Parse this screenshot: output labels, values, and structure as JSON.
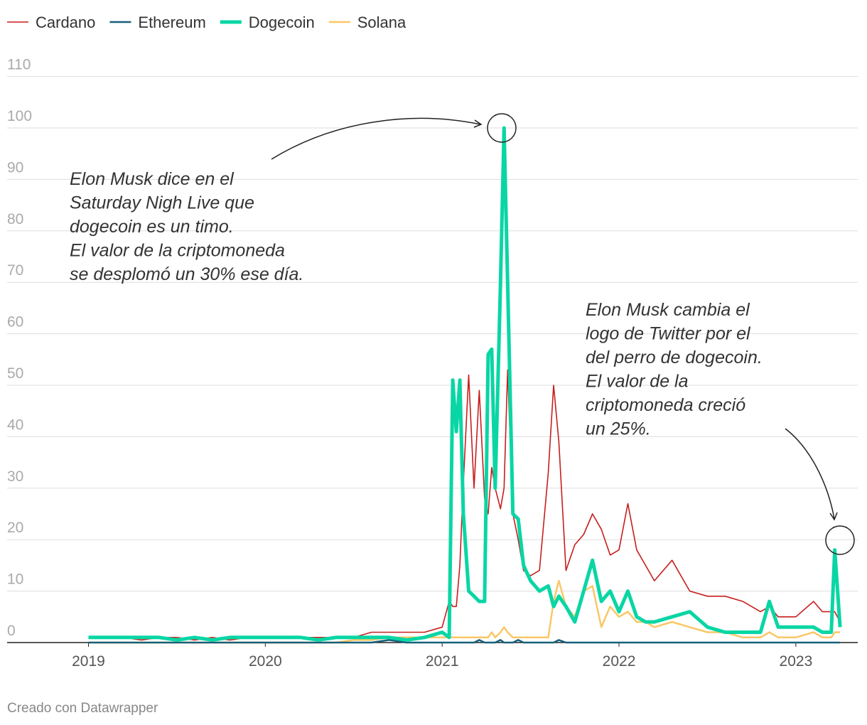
{
  "chart_data": {
    "type": "line",
    "x": [
      2019.0,
      2019.1,
      2019.2,
      2019.3,
      2019.4,
      2019.5,
      2019.6,
      2019.7,
      2019.8,
      2019.9,
      2020.0,
      2020.1,
      2020.2,
      2020.3,
      2020.4,
      2020.5,
      2020.6,
      2020.7,
      2020.8,
      2020.9,
      2021.0,
      2021.04,
      2021.06,
      2021.08,
      2021.1,
      2021.12,
      2021.15,
      2021.18,
      2021.21,
      2021.24,
      2021.26,
      2021.28,
      2021.3,
      2021.33,
      2021.35,
      2021.37,
      2021.4,
      2021.43,
      2021.46,
      2021.5,
      2021.55,
      2021.6,
      2021.63,
      2021.66,
      2021.7,
      2021.75,
      2021.8,
      2021.85,
      2021.9,
      2021.95,
      2022.0,
      2022.05,
      2022.1,
      2022.15,
      2022.2,
      2022.3,
      2022.4,
      2022.5,
      2022.6,
      2022.7,
      2022.8,
      2022.85,
      2022.9,
      2023.0,
      2023.1,
      2023.15,
      2023.2,
      2023.22,
      2023.25
    ],
    "series": [
      {
        "name": "Cardano",
        "color": "#c71e1d",
        "values": [
          1,
          1,
          1,
          0.5,
          1,
          1,
          0.5,
          1,
          0.5,
          1,
          1,
          1,
          1,
          1,
          1,
          1,
          2,
          2,
          2,
          2,
          3,
          8,
          7,
          7,
          15,
          31,
          52,
          30,
          49,
          28,
          25,
          34,
          30,
          26,
          30,
          53,
          25,
          20,
          14,
          13,
          14,
          33,
          50,
          39,
          14,
          19,
          21,
          25,
          22,
          17,
          18,
          27,
          18,
          15,
          12,
          16,
          10,
          9,
          9,
          8,
          6,
          7,
          5,
          5,
          8,
          6,
          6,
          6,
          4
        ]
      },
      {
        "name": "Ethereum",
        "color": "#15607a",
        "values": [
          0,
          0,
          0,
          0,
          0,
          0,
          0,
          0,
          0,
          0,
          0,
          0,
          0,
          0,
          0,
          0,
          0,
          0.5,
          0,
          0,
          0,
          0,
          0,
          0,
          0,
          0,
          0,
          0,
          0.5,
          0,
          0,
          0,
          0,
          0.5,
          0,
          0,
          0,
          0.5,
          0,
          0,
          0,
          0,
          0,
          0.5,
          0,
          0,
          0,
          0,
          0,
          0,
          0,
          0,
          0,
          0,
          0,
          0,
          0,
          0,
          0,
          0,
          0,
          0,
          0,
          0,
          0,
          0,
          0,
          0,
          0
        ]
      },
      {
        "name": "Dogecoin",
        "color": "#09d6a4",
        "values": [
          1,
          1,
          1,
          1,
          1,
          0.5,
          1,
          0.5,
          1,
          1,
          1,
          1,
          1,
          0.5,
          1,
          1,
          1,
          1,
          0.5,
          1,
          2,
          1,
          51,
          41,
          51,
          25,
          10,
          9,
          8,
          8,
          56,
          57,
          30,
          70,
          100,
          70,
          25,
          24,
          15,
          12,
          10,
          11,
          7,
          9,
          7,
          4,
          10,
          16,
          8,
          10,
          6,
          10,
          5,
          4,
          4,
          5,
          6,
          3,
          2,
          2,
          2,
          8,
          3,
          3,
          3,
          2,
          2,
          18,
          3
        ]
      },
      {
        "name": "Solana",
        "color": "#fac767",
        "values": [
          0,
          0,
          0,
          0,
          0,
          0,
          0,
          0,
          0,
          0,
          0,
          0,
          0,
          0,
          0,
          0.5,
          0.5,
          1,
          1,
          1,
          1,
          1,
          1,
          1,
          1,
          1,
          1,
          1,
          1,
          1,
          1,
          2,
          1,
          2,
          3,
          2,
          1,
          1,
          1,
          1,
          1,
          1,
          8,
          12,
          7,
          5,
          10,
          11,
          3,
          7,
          5,
          6,
          4,
          4,
          3,
          4,
          3,
          2,
          2,
          1,
          1,
          2,
          1,
          1,
          2,
          1,
          1,
          2,
          2
        ]
      }
    ],
    "xlim": [
      2018.54,
      2023.35
    ],
    "xticks": [
      2019,
      2020,
      2021,
      2022,
      2023
    ],
    "ylim": [
      0,
      110
    ],
    "yticks": [
      0,
      10,
      20,
      30,
      40,
      50,
      60,
      70,
      80,
      90,
      100,
      110
    ],
    "grid": true,
    "legend": "top",
    "annotations": [
      {
        "lines": [
          "Elon Musk dice en el",
          "Saturday Nigh Live que",
          "dogecoin es un timo.",
          "El valor de la criptomoneda",
          "se desplomó un 30% ese día."
        ]
      },
      {
        "lines": [
          "Elon Musk cambia el",
          "logo de Twitter por el",
          "del perro de dogecoin.",
          "El valor de la",
          "criptomoneda creció",
          "un 25%."
        ]
      }
    ],
    "footer": "Creado con Datawrapper"
  }
}
